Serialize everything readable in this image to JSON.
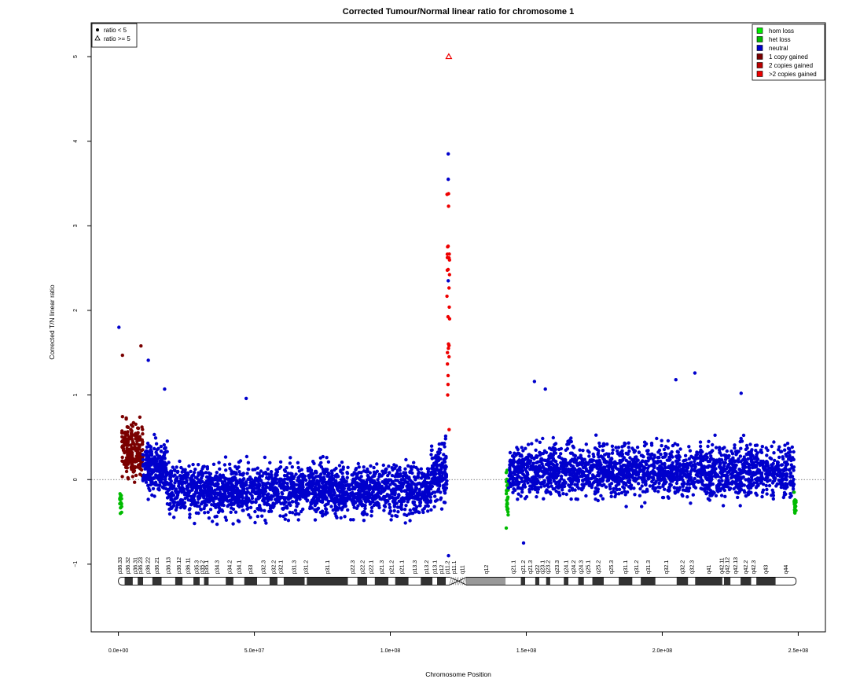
{
  "chart_data": {
    "type": "scatter",
    "title": "Corrected Tumour/Normal linear ratio for chromosome  1",
    "xlabel": "Chromosome Position",
    "ylabel": "Corrected T/N linear ratio",
    "xlim": [
      -10000000,
      260000000
    ],
    "ylim": [
      -1.8,
      5.4
    ],
    "x_ticks": [
      0,
      50000000,
      100000000,
      150000000,
      200000000,
      250000000
    ],
    "x_tick_labels": [
      "0.0e+00",
      "5.0e+07",
      "1.0e+08",
      "1.5e+08",
      "2.0e+08",
      "2.5e+08"
    ],
    "y_ticks": [
      -1,
      0,
      1,
      2,
      3,
      4,
      5
    ],
    "y_tick_labels": [
      "−1",
      "0",
      "1",
      "2",
      "3",
      "4",
      "5"
    ],
    "reference_line_y": 0,
    "shape_legend": {
      "position": "top-left",
      "entries": [
        {
          "symbol": "circle",
          "label": "ratio < 5"
        },
        {
          "symbol": "triangle",
          "label": "ratio >= 5"
        }
      ]
    },
    "color_legend": {
      "position": "top-right",
      "entries": [
        {
          "label": "hom loss",
          "color": "#00ee00"
        },
        {
          "label": "het loss",
          "color": "#00bb00"
        },
        {
          "label": "neutral",
          "color": "#0000cc"
        },
        {
          "label": "1 copy gained",
          "color": "#7a0000"
        },
        {
          "label": "2 copies gained",
          "color": "#bb0000"
        },
        {
          "label": ">2 copies gained",
          "color": "#ee0000"
        }
      ]
    },
    "segments": [
      {
        "start": 500000,
        "end": 1200000,
        "status": "het loss",
        "median": -0.3,
        "spread": 0.15
      },
      {
        "start": 1200000,
        "end": 9000000,
        "status": "1 copy gained",
        "median": 0.35,
        "spread": 0.3
      },
      {
        "start": 9000000,
        "end": 18000000,
        "status": "neutral",
        "median": 0.15,
        "spread": 0.25
      },
      {
        "start": 18000000,
        "end": 115000000,
        "status": "neutral",
        "median": -0.12,
        "spread": 0.24
      },
      {
        "start": 115000000,
        "end": 120800000,
        "status": "neutral",
        "median": 0.05,
        "spread": 0.3
      },
      {
        "start": 120800000,
        "end": 121800000,
        "status": ">2 copies gained",
        "median": 2.0,
        "spread": 1.6
      },
      {
        "start": 142500000,
        "end": 143500000,
        "status": "het loss",
        "median": -0.2,
        "spread": 0.3
      },
      {
        "start": 143500000,
        "end": 248500000,
        "status": "neutral",
        "median": 0.1,
        "spread": 0.25
      },
      {
        "start": 248500000,
        "end": 249200000,
        "status": "het loss",
        "median": -0.3,
        "spread": 0.15
      }
    ],
    "outliers": [
      {
        "x": 200000,
        "y": 1.8,
        "status": "neutral"
      },
      {
        "x": 1500000,
        "y": 1.47,
        "status": "1 copy gained"
      },
      {
        "x": 8300000,
        "y": 1.58,
        "status": "1 copy gained"
      },
      {
        "x": 11000000,
        "y": 1.41,
        "status": "neutral"
      },
      {
        "x": 17000000,
        "y": 1.07,
        "status": "neutral"
      },
      {
        "x": 47000000,
        "y": 0.96,
        "status": "neutral"
      },
      {
        "x": 121500000,
        "y": 5.0,
        "status": ">2 copies gained",
        "symbol": "triangle"
      },
      {
        "x": 121300000,
        "y": 3.85,
        "status": "neutral"
      },
      {
        "x": 121300000,
        "y": 3.55,
        "status": "neutral"
      },
      {
        "x": 121300000,
        "y": 2.35,
        "status": "neutral"
      },
      {
        "x": 121400000,
        "y": -0.9,
        "status": "neutral"
      },
      {
        "x": 153000000,
        "y": 1.16,
        "status": "neutral"
      },
      {
        "x": 157000000,
        "y": 1.07,
        "status": "neutral"
      },
      {
        "x": 205000000,
        "y": 1.18,
        "status": "neutral"
      },
      {
        "x": 212000000,
        "y": 1.26,
        "status": "neutral"
      },
      {
        "x": 229000000,
        "y": 1.02,
        "status": "neutral"
      },
      {
        "x": 149000000,
        "y": -0.75,
        "status": "neutral"
      }
    ],
    "ideogram": {
      "y": -1.2,
      "bands": [
        {
          "name": "p36.33",
          "start": 0,
          "end": 2300000,
          "stain": "gneg"
        },
        {
          "name": "p36.32",
          "start": 2300000,
          "end": 5300000,
          "stain": "gpos"
        },
        {
          "name": "p36.31",
          "start": 5300000,
          "end": 7100000,
          "stain": "gneg"
        },
        {
          "name": "p36.23",
          "start": 7100000,
          "end": 9100000,
          "stain": "gpos"
        },
        {
          "name": "p36.22",
          "start": 9100000,
          "end": 12500000,
          "stain": "gneg"
        },
        {
          "name": "p36.21",
          "start": 12500000,
          "end": 15900000,
          "stain": "gpos"
        },
        {
          "name": "p36.13",
          "start": 15900000,
          "end": 20900000,
          "stain": "gneg"
        },
        {
          "name": "p36.12",
          "start": 20900000,
          "end": 23600000,
          "stain": "gpos"
        },
        {
          "name": "p36.11",
          "start": 23600000,
          "end": 27600000,
          "stain": "gneg"
        },
        {
          "name": "p35.3",
          "start": 27600000,
          "end": 29900000,
          "stain": "gpos"
        },
        {
          "name": "p35.2",
          "start": 29900000,
          "end": 31500000,
          "stain": "gneg"
        },
        {
          "name": "p35.1",
          "start": 31500000,
          "end": 33200000,
          "stain": "gpos"
        },
        {
          "name": "p34.3",
          "start": 33200000,
          "end": 39500000,
          "stain": "gneg"
        },
        {
          "name": "p34.2",
          "start": 39500000,
          "end": 42300000,
          "stain": "gpos"
        },
        {
          "name": "p34.1",
          "start": 42300000,
          "end": 46300000,
          "stain": "gneg"
        },
        {
          "name": "p33",
          "start": 46300000,
          "end": 51000000,
          "stain": "gpos"
        },
        {
          "name": "p32.3",
          "start": 51000000,
          "end": 55600000,
          "stain": "gneg"
        },
        {
          "name": "p32.2",
          "start": 55600000,
          "end": 58500000,
          "stain": "gpos"
        },
        {
          "name": "p32.1",
          "start": 58500000,
          "end": 60800000,
          "stain": "gneg"
        },
        {
          "name": "p31.3",
          "start": 60800000,
          "end": 68500000,
          "stain": "gpos"
        },
        {
          "name": "p31.2",
          "start": 68500000,
          "end": 69300000,
          "stain": "gneg"
        },
        {
          "name": "p31.1",
          "start": 69300000,
          "end": 84400000,
          "stain": "gpos"
        },
        {
          "name": "p22.3",
          "start": 84400000,
          "end": 87900000,
          "stain": "gneg"
        },
        {
          "name": "p22.2",
          "start": 87900000,
          "end": 91500000,
          "stain": "gpos"
        },
        {
          "name": "p22.1",
          "start": 91500000,
          "end": 94300000,
          "stain": "gneg"
        },
        {
          "name": "p21.3",
          "start": 94300000,
          "end": 99300000,
          "stain": "gpos"
        },
        {
          "name": "p21.2",
          "start": 99300000,
          "end": 101800000,
          "stain": "gneg"
        },
        {
          "name": "p21.1",
          "start": 101800000,
          "end": 106700000,
          "stain": "gpos"
        },
        {
          "name": "p13.3",
          "start": 106700000,
          "end": 111200000,
          "stain": "gneg"
        },
        {
          "name": "p13.2",
          "start": 111200000,
          "end": 115500000,
          "stain": "gpos"
        },
        {
          "name": "p13.1",
          "start": 115500000,
          "end": 117200000,
          "stain": "gneg"
        },
        {
          "name": "p12",
          "start": 117200000,
          "end": 120400000,
          "stain": "gpos"
        },
        {
          "name": "p11.2",
          "start": 120400000,
          "end": 121700000,
          "stain": "gneg"
        },
        {
          "name": "p11.1",
          "start": 121700000,
          "end": 125100000,
          "stain": "acen"
        },
        {
          "name": "q11",
          "start": 125100000,
          "end": 128000000,
          "stain": "acen"
        },
        {
          "name": "q12",
          "start": 128000000,
          "end": 142400000,
          "stain": "gvar"
        },
        {
          "name": "q21.1",
          "start": 142400000,
          "end": 148000000,
          "stain": "gneg"
        },
        {
          "name": "q21.2",
          "start": 148000000,
          "end": 149600000,
          "stain": "gpos"
        },
        {
          "name": "q21.3",
          "start": 149600000,
          "end": 153300000,
          "stain": "gneg"
        },
        {
          "name": "q22",
          "start": 153300000,
          "end": 154800000,
          "stain": "gpos"
        },
        {
          "name": "q23.1",
          "start": 154800000,
          "end": 157300000,
          "stain": "gneg"
        },
        {
          "name": "q23.2",
          "start": 157300000,
          "end": 158800000,
          "stain": "gpos"
        },
        {
          "name": "q23.3",
          "start": 158800000,
          "end": 163800000,
          "stain": "gneg"
        },
        {
          "name": "q24.1",
          "start": 163800000,
          "end": 165500000,
          "stain": "gpos"
        },
        {
          "name": "q24.2",
          "start": 165500000,
          "end": 169100000,
          "stain": "gneg"
        },
        {
          "name": "q24.3",
          "start": 169100000,
          "end": 171200000,
          "stain": "gpos"
        },
        {
          "name": "q25.1",
          "start": 171200000,
          "end": 174300000,
          "stain": "gneg"
        },
        {
          "name": "q25.2",
          "start": 174300000,
          "end": 178500000,
          "stain": "gpos"
        },
        {
          "name": "q25.3",
          "start": 178500000,
          "end": 184000000,
          "stain": "gneg"
        },
        {
          "name": "q31.1",
          "start": 184000000,
          "end": 189000000,
          "stain": "gpos"
        },
        {
          "name": "q31.2",
          "start": 189000000,
          "end": 192100000,
          "stain": "gneg"
        },
        {
          "name": "q31.3",
          "start": 192100000,
          "end": 197500000,
          "stain": "gpos"
        },
        {
          "name": "q32.1",
          "start": 197500000,
          "end": 205300000,
          "stain": "gneg"
        },
        {
          "name": "q32.2",
          "start": 205300000,
          "end": 209500000,
          "stain": "gpos"
        },
        {
          "name": "q32.3",
          "start": 209500000,
          "end": 212100000,
          "stain": "gneg"
        },
        {
          "name": "q41",
          "start": 212100000,
          "end": 222100000,
          "stain": "gpos"
        },
        {
          "name": "q42.11",
          "start": 222100000,
          "end": 222700000,
          "stain": "gneg"
        },
        {
          "name": "q42.12",
          "start": 222700000,
          "end": 225100000,
          "stain": "gpos"
        },
        {
          "name": "q42.13",
          "start": 225100000,
          "end": 228800000,
          "stain": "gneg"
        },
        {
          "name": "q42.2",
          "start": 228800000,
          "end": 232700000,
          "stain": "gpos"
        },
        {
          "name": "q42.3",
          "start": 232700000,
          "end": 234600000,
          "stain": "gneg"
        },
        {
          "name": "q43",
          "start": 234600000,
          "end": 241700000,
          "stain": "gpos"
        },
        {
          "name": "q44",
          "start": 241700000,
          "end": 249250621,
          "stain": "gneg"
        }
      ],
      "labels": [
        {
          "name": "p36.33",
          "pos": 500000
        },
        {
          "name": "p36.32",
          "pos": 3500000
        },
        {
          "name": "p36.31",
          "pos": 6200000
        },
        {
          "name": "p36.23",
          "pos": 8100000
        },
        {
          "name": "p36.22",
          "pos": 10800000
        },
        {
          "name": "p36.21",
          "pos": 14200000
        },
        {
          "name": "p36.13",
          "pos": 18400000
        },
        {
          "name": "p36.12",
          "pos": 22200000
        },
        {
          "name": "p36.11",
          "pos": 25600000
        },
        {
          "name": "p35.3",
          "pos": 28700000
        },
        {
          "name": "p35.2",
          "pos": 30700000
        },
        {
          "name": "p35.1",
          "pos": 32300000
        },
        {
          "name": "p34.3",
          "pos": 36300000
        },
        {
          "name": "p34.2",
          "pos": 40900000
        },
        {
          "name": "p34.1",
          "pos": 44300000
        },
        {
          "name": "p33",
          "pos": 48600000
        },
        {
          "name": "p32.3",
          "pos": 53300000
        },
        {
          "name": "p32.2",
          "pos": 57000000
        },
        {
          "name": "p32.1",
          "pos": 59600000
        },
        {
          "name": "p31.3",
          "pos": 64600000
        },
        {
          "name": "p31.2",
          "pos": 68900000
        },
        {
          "name": "p31.1",
          "pos": 76800000
        },
        {
          "name": "p22.3",
          "pos": 86100000
        },
        {
          "name": "p22.2",
          "pos": 89700000
        },
        {
          "name": "p22.1",
          "pos": 92900000
        },
        {
          "name": "p21.3",
          "pos": 96800000
        },
        {
          "name": "p21.2",
          "pos": 100500000
        },
        {
          "name": "p21.1",
          "pos": 104200000
        },
        {
          "name": "p13.3",
          "pos": 108900000
        },
        {
          "name": "p13.2",
          "pos": 113300000
        },
        {
          "name": "p13.1",
          "pos": 116300000
        },
        {
          "name": "p12",
          "pos": 118800000
        },
        {
          "name": "p11.2",
          "pos": 121000000
        },
        {
          "name": "p11.1",
          "pos": 123400000
        },
        {
          "name": "q11",
          "pos": 126500000
        },
        {
          "name": "q12",
          "pos": 135200000
        },
        {
          "name": "q21.1",
          "pos": 145200000
        },
        {
          "name": "q21.2",
          "pos": 148800000
        },
        {
          "name": "q21.3",
          "pos": 151400000
        },
        {
          "name": "q22",
          "pos": 154000000
        },
        {
          "name": "q23.1",
          "pos": 156000000
        },
        {
          "name": "q23.2",
          "pos": 158000000
        },
        {
          "name": "q23.3",
          "pos": 161300000
        },
        {
          "name": "q24.1",
          "pos": 164600000
        },
        {
          "name": "q24.2",
          "pos": 167300000
        },
        {
          "name": "q24.3",
          "pos": 170100000
        },
        {
          "name": "q25.1",
          "pos": 172700000
        },
        {
          "name": "q25.2",
          "pos": 176400000
        },
        {
          "name": "q25.3",
          "pos": 181200000
        },
        {
          "name": "q31.1",
          "pos": 186500000
        },
        {
          "name": "q31.2",
          "pos": 190500000
        },
        {
          "name": "q31.3",
          "pos": 194800000
        },
        {
          "name": "q32.1",
          "pos": 201400000
        },
        {
          "name": "q32.2",
          "pos": 207400000
        },
        {
          "name": "q32.3",
          "pos": 210800000
        },
        {
          "name": "q41",
          "pos": 217100000
        },
        {
          "name": "q42.11",
          "pos": 221800000
        },
        {
          "name": "q42.12",
          "pos": 223900000
        },
        {
          "name": "q42.13",
          "pos": 226900000
        },
        {
          "name": "q42.2",
          "pos": 230700000
        },
        {
          "name": "q42.3",
          "pos": 233600000
        },
        {
          "name": "q43",
          "pos": 238100000
        },
        {
          "name": "q44",
          "pos": 245400000
        }
      ]
    }
  }
}
